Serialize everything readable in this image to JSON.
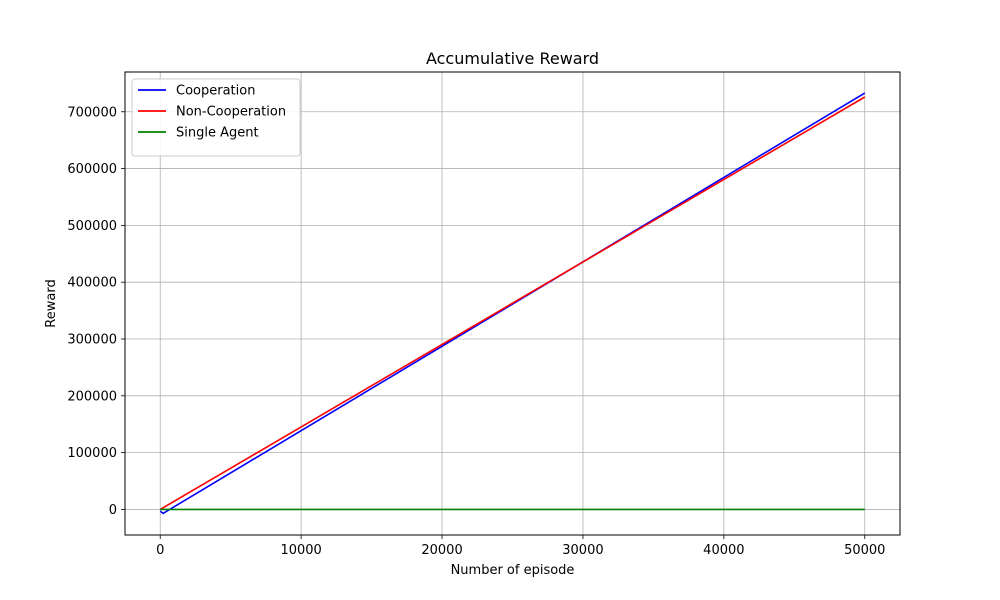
{
  "chart_data": {
    "type": "line",
    "title": "Accumulative Reward",
    "xlabel": "Number of episode",
    "ylabel": "Reward",
    "xlim": [
      -2500,
      52500
    ],
    "ylim": [
      -45000,
      770000
    ],
    "x_ticks": [
      0,
      10000,
      20000,
      30000,
      40000,
      50000
    ],
    "y_ticks": [
      0,
      100000,
      200000,
      300000,
      400000,
      500000,
      600000,
      700000
    ],
    "grid": true,
    "legend_position": "upper-left",
    "series": [
      {
        "name": "Cooperation",
        "color": "#0000ff",
        "x": [
          0,
          200,
          50000
        ],
        "y": [
          -3000,
          -7000,
          733000
        ]
      },
      {
        "name": "Non-Cooperation",
        "color": "#ff0000",
        "x": [
          0,
          50000
        ],
        "y": [
          0,
          726000
        ]
      },
      {
        "name": "Single Agent",
        "color": "#008000",
        "x": [
          0,
          50000
        ],
        "y": [
          0,
          0
        ]
      }
    ]
  }
}
